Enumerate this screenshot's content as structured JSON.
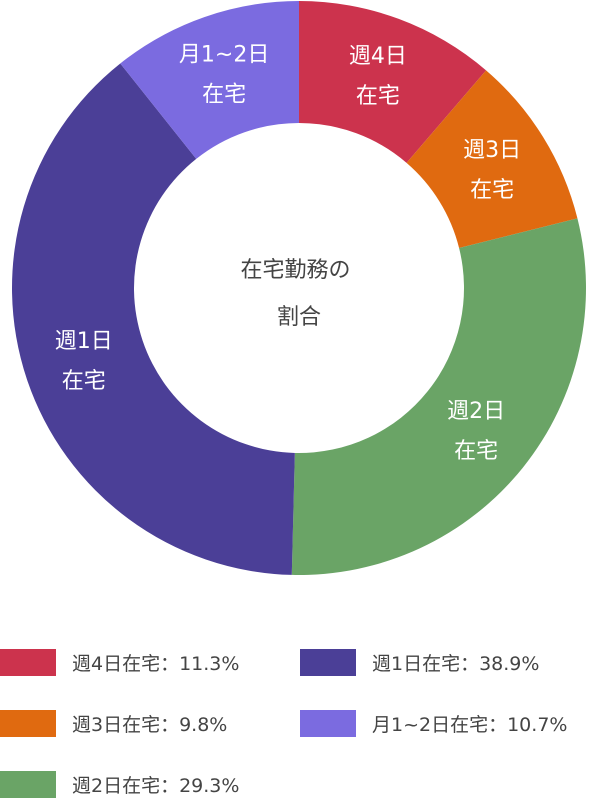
{
  "chart_data": {
    "type": "pie",
    "variant": "donut",
    "center_label": [
      "在宅勤務の",
      "割合"
    ],
    "slices": [
      {
        "key": "w4",
        "label": [
          "週4日",
          "在宅"
        ],
        "legend": "週4日在宅：11.3%",
        "value": 11.3,
        "color": "#cc334d"
      },
      {
        "key": "w3",
        "label": [
          "週3日",
          "在宅"
        ],
        "legend": "週3日在宅：9.8%",
        "value": 9.8,
        "color": "#e06a10"
      },
      {
        "key": "w2",
        "label": [
          "週2日",
          "在宅"
        ],
        "legend": "週2日在宅：29.3%",
        "value": 29.3,
        "color": "#6aa466"
      },
      {
        "key": "w1",
        "label": [
          "週1日",
          "在宅"
        ],
        "legend": "週1日在宅：38.9%",
        "value": 38.9,
        "color": "#4b3f97"
      },
      {
        "key": "m12",
        "label": [
          "月1~2日",
          "在宅"
        ],
        "legend": "月1~2日在宅：10.7%",
        "value": 10.7,
        "color": "#7b6be0"
      }
    ],
    "legend_placement": "bottom",
    "grid": false
  }
}
